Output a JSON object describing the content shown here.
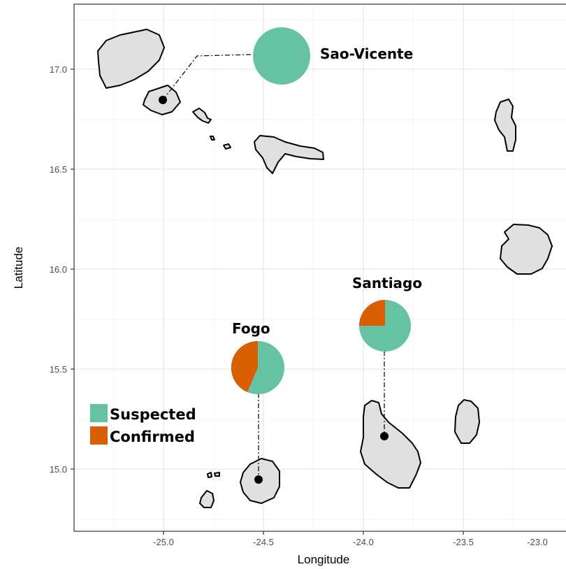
{
  "colors": {
    "suspected": "#66c2a5",
    "confirmed": "#d95f02",
    "land": "#e0e0e0",
    "grid": "#e6e6e6",
    "panel_border": "#333333"
  },
  "axes": {
    "x_title": "Longitude",
    "y_title": "Latitude",
    "x_ticks": [
      "-25.0",
      "-24.5",
      "-24.0",
      "-23.5",
      "-23.0"
    ],
    "y_ticks": [
      "15.0",
      "15.5",
      "16.0",
      "16.5",
      "17.0"
    ]
  },
  "legend": {
    "items": [
      {
        "label": "Suspected",
        "color": "#66c2a5"
      },
      {
        "label": "Confirmed",
        "color": "#d95f02"
      }
    ]
  },
  "sites": [
    {
      "name": "Sao-Vicente",
      "point_lon": -24.97,
      "point_lat": 16.85,
      "suspected_share": 1.0,
      "confirmed_share": 0.0
    },
    {
      "name": "Santiago",
      "point_lon": -23.65,
      "point_lat": 15.16,
      "suspected_share": 0.79,
      "confirmed_share": 0.21
    },
    {
      "name": "Fogo",
      "point_lon": -24.4,
      "point_lat": 14.95,
      "suspected_share": 0.56,
      "confirmed_share": 0.44
    }
  ],
  "chart_data": {
    "type": "pie",
    "xlabel": "Longitude",
    "ylabel": "Latitude",
    "xlim": [
      -25.45,
      -22.55
    ],
    "ylim": [
      14.62,
      17.32
    ],
    "grid": true,
    "legend_position": "bottom-left",
    "categories": [
      "Suspected",
      "Confirmed"
    ],
    "pies": [
      {
        "name": "Sao-Vicente",
        "values": [
          1.0,
          0.0
        ]
      },
      {
        "name": "Santiago",
        "values": [
          0.79,
          0.21
        ]
      },
      {
        "name": "Fogo",
        "values": [
          0.56,
          0.44
        ]
      }
    ]
  }
}
